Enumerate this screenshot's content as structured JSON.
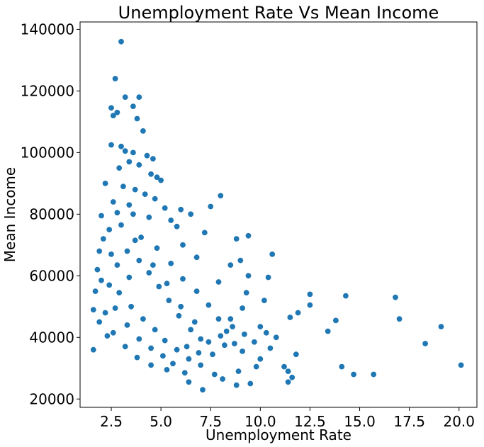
{
  "chart_data": {
    "type": "scatter",
    "title": "Unemployment Rate Vs Mean Income",
    "xlabel": "Unemployment Rate",
    "ylabel": "Mean Income",
    "xlim": [
      0.93,
      20.9
    ],
    "ylim": [
      17300,
      142400
    ],
    "x_ticks": [
      2.5,
      5.0,
      7.5,
      10.0,
      12.5,
      15.0,
      17.5,
      20.0
    ],
    "x_tick_labels": [
      "2.5",
      "5.0",
      "7.5",
      "10.0",
      "12.5",
      "15.0",
      "17.5",
      "20.0"
    ],
    "y_ticks": [
      20000,
      40000,
      60000,
      80000,
      100000,
      120000,
      140000
    ],
    "y_tick_labels": [
      "20000",
      "40000",
      "60000",
      "80000",
      "100000",
      "120000",
      "140000"
    ],
    "grid": false,
    "legend": "none",
    "marker_color": "#1f77b4",
    "points": [
      [
        3.0,
        136000
      ],
      [
        2.7,
        124000
      ],
      [
        3.2,
        118000
      ],
      [
        3.9,
        118000
      ],
      [
        2.5,
        114500
      ],
      [
        2.8,
        113000
      ],
      [
        3.6,
        115000
      ],
      [
        3.8,
        111000
      ],
      [
        2.6,
        112000
      ],
      [
        4.1,
        107000
      ],
      [
        2.5,
        102500
      ],
      [
        3.0,
        102000
      ],
      [
        3.2,
        100500
      ],
      [
        3.6,
        100000
      ],
      [
        4.3,
        99000
      ],
      [
        4.6,
        98000
      ],
      [
        3.4,
        97000
      ],
      [
        3.9,
        96000
      ],
      [
        2.9,
        95000
      ],
      [
        4.5,
        93000
      ],
      [
        4.8,
        92000
      ],
      [
        5.0,
        91000
      ],
      [
        2.2,
        90000
      ],
      [
        3.1,
        89000
      ],
      [
        3.7,
        88000
      ],
      [
        4.2,
        86500
      ],
      [
        4.7,
        85000
      ],
      [
        2.6,
        84000
      ],
      [
        3.4,
        83000
      ],
      [
        5.2,
        82000
      ],
      [
        6.0,
        81500
      ],
      [
        8.0,
        86000
      ],
      [
        7.5,
        82500
      ],
      [
        2.0,
        79500
      ],
      [
        2.8,
        80500
      ],
      [
        3.6,
        80000
      ],
      [
        4.4,
        79000
      ],
      [
        5.5,
        78000
      ],
      [
        6.5,
        80000
      ],
      [
        5.8,
        76000
      ],
      [
        9.4,
        73000
      ],
      [
        8.8,
        72000
      ],
      [
        7.2,
        74000
      ],
      [
        10.6,
        67000
      ],
      [
        9.0,
        65000
      ],
      [
        8.5,
        63500
      ],
      [
        6.1,
        70000
      ],
      [
        6.8,
        66000
      ],
      [
        7.9,
        58000
      ],
      [
        10.4,
        59500
      ],
      [
        9.4,
        60000
      ],
      [
        12.5,
        54000
      ],
      [
        14.3,
        53500
      ],
      [
        16.8,
        53000
      ],
      [
        17.0,
        46000
      ],
      [
        13.8,
        45500
      ],
      [
        11.5,
        46500
      ],
      [
        12.5,
        50500
      ],
      [
        13.4,
        42000
      ],
      [
        11.9,
        48000
      ],
      [
        10.0,
        43500
      ],
      [
        10.8,
        40000
      ],
      [
        10.5,
        36500
      ],
      [
        11.8,
        34500
      ],
      [
        11.2,
        30500
      ],
      [
        11.4,
        29000
      ],
      [
        11.6,
        27000
      ],
      [
        11.4,
        25500
      ],
      [
        14.1,
        30500
      ],
      [
        14.7,
        28000
      ],
      [
        15.7,
        28000
      ],
      [
        18.3,
        38000
      ],
      [
        19.1,
        43500
      ],
      [
        20.1,
        31000
      ],
      [
        9.5,
        25000
      ],
      [
        8.8,
        24500
      ],
      [
        7.1,
        23000
      ],
      [
        6.4,
        25500
      ],
      [
        1.6,
        36000
      ],
      [
        1.6,
        49000
      ],
      [
        1.7,
        55000
      ],
      [
        1.9,
        45000
      ],
      [
        2.3,
        40500
      ],
      [
        1.8,
        62000
      ],
      [
        1.9,
        68000
      ],
      [
        2.1,
        72000
      ],
      [
        2.4,
        75000
      ],
      [
        9.3,
        54500
      ],
      [
        9.1,
        49500
      ],
      [
        8.5,
        46000
      ],
      [
        10.2,
        52000
      ],
      [
        10.0,
        33000
      ],
      [
        9.8,
        30500
      ],
      [
        8.9,
        29000
      ],
      [
        8.1,
        26500
      ],
      [
        7.7,
        28000
      ],
      [
        6.2,
        28500
      ],
      [
        5.3,
        29500
      ],
      [
        4.5,
        31000
      ],
      [
        3.8,
        33500
      ],
      [
        3.2,
        37000
      ],
      [
        2.6,
        41500
      ],
      [
        2.2,
        48000
      ],
      [
        2.4,
        57000
      ],
      [
        2.8,
        63500
      ],
      [
        3.3,
        68000
      ],
      [
        4.0,
        72500
      ],
      [
        4.8,
        69000
      ],
      [
        5.5,
        64000
      ],
      [
        6.1,
        59000
      ],
      [
        6.8,
        55000
      ],
      [
        7.4,
        50500
      ],
      [
        7.9,
        46000
      ],
      [
        8.3,
        42000
      ],
      [
        8.7,
        38000
      ],
      [
        9.1,
        35500
      ],
      [
        7.0,
        39500
      ],
      [
        6.5,
        42500
      ],
      [
        5.9,
        47000
      ],
      [
        5.4,
        52000
      ],
      [
        4.9,
        56500
      ],
      [
        4.4,
        61000
      ],
      [
        3.9,
        65000
      ],
      [
        3.4,
        59500
      ],
      [
        2.9,
        54500
      ],
      [
        3.5,
        50000
      ],
      [
        4.1,
        46000
      ],
      [
        4.7,
        42500
      ],
      [
        5.2,
        39000
      ],
      [
        5.8,
        36000
      ],
      [
        6.4,
        33000
      ],
      [
        7.0,
        31000
      ],
      [
        7.6,
        34500
      ],
      [
        8.2,
        37500
      ],
      [
        6.7,
        45000
      ],
      [
        6.0,
        50000
      ],
      [
        5.3,
        57500
      ],
      [
        4.6,
        63500
      ],
      [
        3.7,
        71500
      ],
      [
        3.0,
        76500
      ],
      [
        2.5,
        67000
      ],
      [
        2.0,
        58500
      ],
      [
        2.7,
        49500
      ],
      [
        3.3,
        44000
      ],
      [
        3.9,
        39500
      ],
      [
        4.5,
        36500
      ],
      [
        5.1,
        34000
      ],
      [
        5.6,
        31500
      ],
      [
        6.3,
        37000
      ],
      [
        6.9,
        35000
      ],
      [
        7.4,
        38500
      ],
      [
        8.0,
        40500
      ],
      [
        8.6,
        43500
      ],
      [
        9.2,
        41000
      ],
      [
        9.7,
        38500
      ],
      [
        10.3,
        41500
      ]
    ]
  }
}
